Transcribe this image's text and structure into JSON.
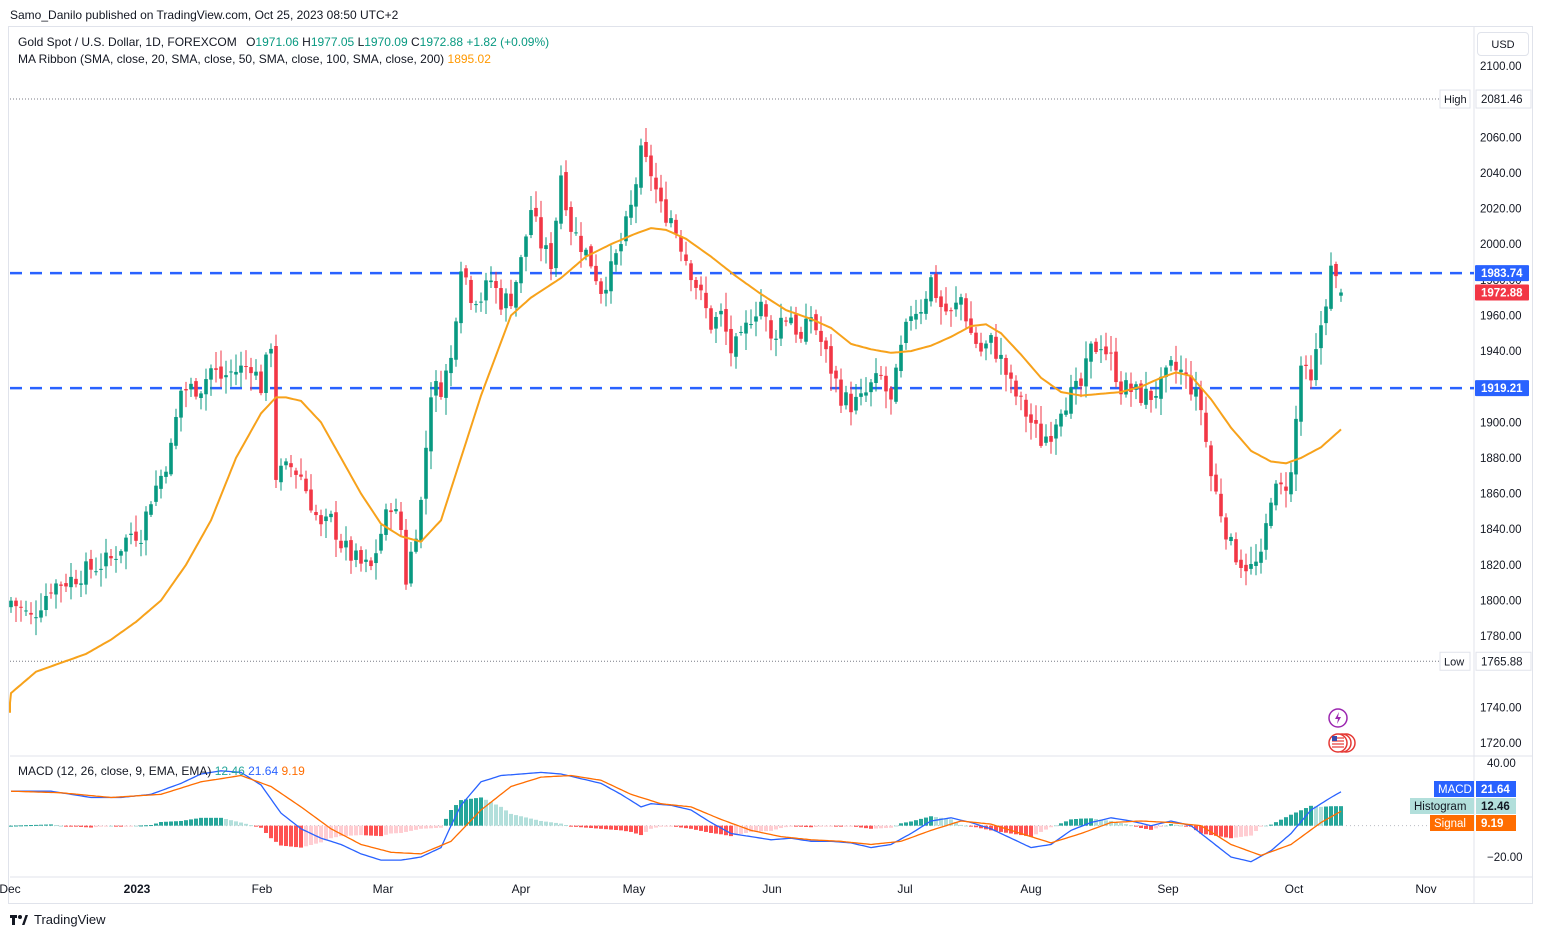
{
  "header": {
    "publisher": "Samo_Danilo published on TradingView.com, Oct 25, 2023 08:50 UTC+2"
  },
  "legend": {
    "symbol": "Gold Spot / U.S. Dollar, 1D, FOREXCOM",
    "open_label": "O",
    "open": "1971.06",
    "high_label": "H",
    "high": "1977.05",
    "low_label": "L",
    "low": "1970.09",
    "close_label": "C",
    "close": "1972.88",
    "change": "+1.82 (+0.09%)",
    "ma_label": "MA Ribbon (SMA, close, 20, SMA, close, 50, SMA, close, 100, SMA, close, 200)",
    "ma_value": "1895.02",
    "macd_label": "MACD (12, 26, close, 9, EMA, EMA)",
    "macd_hist": "12.46",
    "macd_value": "21.64",
    "macd_signal": "9.19"
  },
  "currency_button": "USD",
  "footer": {
    "brand": "TradingView"
  },
  "colors": {
    "up": "#089981",
    "down": "#f23645",
    "ma": "#f7a21b",
    "level": "#2962ff",
    "macd": "#2962ff",
    "signal": "#ff6d00",
    "hist_up_strong": "#26a69a",
    "hist_up_weak": "#b2dfdb",
    "hist_down_strong": "#ff5252",
    "hist_down_weak": "#ffcdd2",
    "price_tag": "#f23645"
  },
  "chart_data": {
    "type": "candlestick",
    "price_axis": {
      "ticks": [
        "2100.00",
        "2080.00",
        "2060.00",
        "2040.00",
        "2020.00",
        "2000.00",
        "1980.00",
        "1960.00",
        "1940.00",
        "1920.00",
        "1900.00",
        "1880.00",
        "1860.00",
        "1840.00",
        "1820.00",
        "1800.00",
        "1780.00",
        "1760.00",
        "1740.00",
        "1720.00"
      ],
      "range": [
        1712,
        2100
      ]
    },
    "time_axis": {
      "labels": [
        "Dec",
        "2023",
        "Feb",
        "Mar",
        "Apr",
        "May",
        "Jun",
        "Jul",
        "Aug",
        "Sep",
        "Oct",
        "Nov"
      ]
    },
    "high_line": {
      "label": "High",
      "value": "2081.46"
    },
    "low_line": {
      "label": "Low",
      "value": "1765.88"
    },
    "levels": [
      {
        "value": "1983.74"
      },
      {
        "value": "1919.21"
      }
    ],
    "last_price": "1972.88",
    "ma_anchor": [
      [
        -1,
        1737
      ],
      [
        0,
        1748
      ],
      [
        5,
        1760
      ],
      [
        10,
        1765
      ],
      [
        15,
        1770
      ],
      [
        20,
        1778
      ],
      [
        25,
        1788
      ],
      [
        30,
        1800
      ],
      [
        35,
        1820
      ],
      [
        40,
        1845
      ],
      [
        45,
        1880
      ],
      [
        50,
        1905
      ],
      [
        53,
        1914
      ],
      [
        55,
        1914
      ],
      [
        58,
        1912
      ],
      [
        62,
        1900
      ],
      [
        66,
        1880
      ],
      [
        70,
        1860
      ],
      [
        74,
        1843
      ],
      [
        78,
        1836
      ],
      [
        82,
        1833
      ],
      [
        86,
        1845
      ],
      [
        90,
        1880
      ],
      [
        94,
        1915
      ],
      [
        98,
        1945
      ],
      [
        100,
        1960
      ],
      [
        104,
        1970
      ],
      [
        110,
        1981
      ],
      [
        115,
        1993
      ],
      [
        120,
        2000
      ],
      [
        125,
        2006
      ],
      [
        128,
        2009
      ],
      [
        131,
        2008
      ],
      [
        135,
        2003
      ],
      [
        140,
        1993
      ],
      [
        145,
        1982
      ],
      [
        150,
        1972
      ],
      [
        155,
        1963
      ],
      [
        160,
        1958
      ],
      [
        164,
        1953
      ],
      [
        168,
        1944
      ],
      [
        172,
        1941
      ],
      [
        176,
        1939
      ],
      [
        180,
        1940
      ],
      [
        184,
        1943
      ],
      [
        188,
        1948
      ],
      [
        192,
        1954
      ],
      [
        195,
        1955
      ],
      [
        198,
        1950
      ],
      [
        202,
        1938
      ],
      [
        206,
        1925
      ],
      [
        210,
        1917
      ],
      [
        214,
        1915
      ],
      [
        218,
        1916
      ],
      [
        222,
        1917
      ],
      [
        226,
        1920
      ],
      [
        230,
        1925
      ],
      [
        233,
        1928
      ],
      [
        236,
        1926
      ],
      [
        240,
        1913
      ],
      [
        244,
        1897
      ],
      [
        248,
        1884
      ],
      [
        252,
        1878
      ],
      [
        255,
        1877
      ],
      [
        258,
        1880
      ],
      [
        262,
        1886
      ],
      [
        266,
        1896
      ]
    ],
    "close_anchor": [
      [
        0,
        1800
      ],
      [
        4,
        1790
      ],
      [
        8,
        1808
      ],
      [
        12,
        1812
      ],
      [
        16,
        1818
      ],
      [
        20,
        1823
      ],
      [
        24,
        1838
      ],
      [
        26,
        1838
      ],
      [
        28,
        1858
      ],
      [
        30,
        1870
      ],
      [
        32,
        1885
      ],
      [
        34,
        1918
      ],
      [
        38,
        1920
      ],
      [
        40,
        1930
      ],
      [
        42,
        1925
      ],
      [
        44,
        1928
      ],
      [
        46,
        1930
      ],
      [
        48,
        1933
      ],
      [
        50,
        1920
      ],
      [
        52,
        1945
      ],
      [
        53,
        1870
      ],
      [
        56,
        1875
      ],
      [
        58,
        1870
      ],
      [
        60,
        1855
      ],
      [
        62,
        1840
      ],
      [
        64,
        1845
      ],
      [
        66,
        1832
      ],
      [
        68,
        1825
      ],
      [
        70,
        1820
      ],
      [
        72,
        1818
      ],
      [
        74,
        1838
      ],
      [
        76,
        1855
      ],
      [
        78,
        1840
      ],
      [
        79,
        1812
      ],
      [
        82,
        1855
      ],
      [
        84,
        1918
      ],
      [
        86,
        1920
      ],
      [
        88,
        1935
      ],
      [
        90,
        1990
      ],
      [
        92,
        1972
      ],
      [
        94,
        1970
      ],
      [
        96,
        1980
      ],
      [
        98,
        1968
      ],
      [
        100,
        1970
      ],
      [
        102,
        1990
      ],
      [
        104,
        2020
      ],
      [
        106,
        2000
      ],
      [
        108,
        1990
      ],
      [
        110,
        2040
      ],
      [
        112,
        2010
      ],
      [
        114,
        2000
      ],
      [
        116,
        1990
      ],
      [
        118,
        1975
      ],
      [
        120,
        1985
      ],
      [
        122,
        2000
      ],
      [
        124,
        2020
      ],
      [
        126,
        2050
      ],
      [
        128,
        2040
      ],
      [
        130,
        2020
      ],
      [
        132,
        2015
      ],
      [
        134,
        2000
      ],
      [
        136,
        1985
      ],
      [
        138,
        1970
      ],
      [
        140,
        1955
      ],
      [
        142,
        1960
      ],
      [
        144,
        1940
      ],
      [
        146,
        1945
      ],
      [
        148,
        1960
      ],
      [
        150,
        1968
      ],
      [
        152,
        1945
      ],
      [
        154,
        1958
      ],
      [
        156,
        1960
      ],
      [
        158,
        1945
      ],
      [
        160,
        1960
      ],
      [
        162,
        1945
      ],
      [
        164,
        1930
      ],
      [
        166,
        1915
      ],
      [
        168,
        1910
      ],
      [
        170,
        1912
      ],
      [
        172,
        1920
      ],
      [
        174,
        1925
      ],
      [
        176,
        1910
      ],
      [
        178,
        1940
      ],
      [
        180,
        1962
      ],
      [
        182,
        1965
      ],
      [
        184,
        1980
      ],
      [
        186,
        1965
      ],
      [
        188,
        1960
      ],
      [
        190,
        1970
      ],
      [
        192,
        1950
      ],
      [
        194,
        1940
      ],
      [
        196,
        1945
      ],
      [
        198,
        1935
      ],
      [
        200,
        1920
      ],
      [
        202,
        1910
      ],
      [
        204,
        1900
      ],
      [
        206,
        1890
      ],
      [
        208,
        1895
      ],
      [
        210,
        1910
      ],
      [
        212,
        1915
      ],
      [
        214,
        1920
      ],
      [
        216,
        1940
      ],
      [
        218,
        1945
      ],
      [
        220,
        1935
      ],
      [
        222,
        1920
      ],
      [
        224,
        1918
      ],
      [
        226,
        1915
      ],
      [
        228,
        1915
      ],
      [
        230,
        1920
      ],
      [
        232,
        1930
      ],
      [
        234,
        1928
      ],
      [
        236,
        1920
      ],
      [
        238,
        1908
      ],
      [
        240,
        1870
      ],
      [
        242,
        1850
      ],
      [
        244,
        1830
      ],
      [
        246,
        1822
      ],
      [
        248,
        1818
      ],
      [
        250,
        1822
      ],
      [
        252,
        1860
      ],
      [
        254,
        1862
      ],
      [
        256,
        1870
      ],
      [
        258,
        1932
      ],
      [
        260,
        1920
      ],
      [
        262,
        1955
      ],
      [
        264,
        1985
      ],
      [
        266,
        1972
      ]
    ],
    "candle_count": 266,
    "macd_axis": {
      "ticks": [
        "40.00",
        "20.00"
      ],
      "range": [
        -26,
        43
      ]
    },
    "macd_anchor": [
      [
        0,
        22
      ],
      [
        8,
        22
      ],
      [
        16,
        18
      ],
      [
        22,
        18
      ],
      [
        28,
        20
      ],
      [
        34,
        27
      ],
      [
        38,
        33
      ],
      [
        42,
        35
      ],
      [
        46,
        34
      ],
      [
        50,
        26
      ],
      [
        54,
        8
      ],
      [
        58,
        -2
      ],
      [
        62,
        -8
      ],
      [
        66,
        -12
      ],
      [
        70,
        -18
      ],
      [
        74,
        -22
      ],
      [
        78,
        -22
      ],
      [
        82,
        -20
      ],
      [
        86,
        -14
      ],
      [
        88,
        0
      ],
      [
        90,
        13
      ],
      [
        94,
        28
      ],
      [
        98,
        32
      ],
      [
        102,
        33
      ],
      [
        106,
        34
      ],
      [
        110,
        33
      ],
      [
        114,
        30
      ],
      [
        118,
        27
      ],
      [
        122,
        20
      ],
      [
        126,
        12
      ],
      [
        128,
        14
      ],
      [
        132,
        13
      ],
      [
        136,
        10
      ],
      [
        140,
        2
      ],
      [
        144,
        -5
      ],
      [
        148,
        -7
      ],
      [
        152,
        -9
      ],
      [
        156,
        -8
      ],
      [
        160,
        -10
      ],
      [
        164,
        -10
      ],
      [
        168,
        -11
      ],
      [
        172,
        -14
      ],
      [
        176,
        -12
      ],
      [
        180,
        -5
      ],
      [
        184,
        3
      ],
      [
        188,
        5
      ],
      [
        192,
        2
      ],
      [
        196,
        -2
      ],
      [
        200,
        -8
      ],
      [
        204,
        -14
      ],
      [
        208,
        -12
      ],
      [
        212,
        -3
      ],
      [
        216,
        2
      ],
      [
        220,
        5
      ],
      [
        224,
        3
      ],
      [
        228,
        0
      ],
      [
        232,
        3
      ],
      [
        236,
        0
      ],
      [
        240,
        -10
      ],
      [
        244,
        -20
      ],
      [
        248,
        -23
      ],
      [
        252,
        -16
      ],
      [
        256,
        -5
      ],
      [
        260,
        10
      ],
      [
        264,
        18
      ],
      [
        266,
        21.64
      ]
    ],
    "signal_anchor": [
      [
        0,
        22
      ],
      [
        10,
        21
      ],
      [
        20,
        18
      ],
      [
        30,
        20
      ],
      [
        38,
        28
      ],
      [
        46,
        32
      ],
      [
        52,
        25
      ],
      [
        58,
        12
      ],
      [
        64,
        -2
      ],
      [
        70,
        -12
      ],
      [
        76,
        -17
      ],
      [
        82,
        -18
      ],
      [
        88,
        -10
      ],
      [
        94,
        10
      ],
      [
        100,
        25
      ],
      [
        106,
        31
      ],
      [
        112,
        32
      ],
      [
        118,
        29
      ],
      [
        124,
        20
      ],
      [
        130,
        14
      ],
      [
        136,
        12
      ],
      [
        142,
        4
      ],
      [
        148,
        -3
      ],
      [
        154,
        -7
      ],
      [
        160,
        -9
      ],
      [
        166,
        -10
      ],
      [
        172,
        -12
      ],
      [
        178,
        -10
      ],
      [
        184,
        -3
      ],
      [
        190,
        3
      ],
      [
        196,
        1
      ],
      [
        202,
        -5
      ],
      [
        208,
        -11
      ],
      [
        214,
        -5
      ],
      [
        220,
        2
      ],
      [
        226,
        3
      ],
      [
        232,
        2
      ],
      [
        238,
        0
      ],
      [
        244,
        -12
      ],
      [
        250,
        -19
      ],
      [
        256,
        -12
      ],
      [
        262,
        2
      ],
      [
        266,
        9.19
      ]
    ]
  }
}
